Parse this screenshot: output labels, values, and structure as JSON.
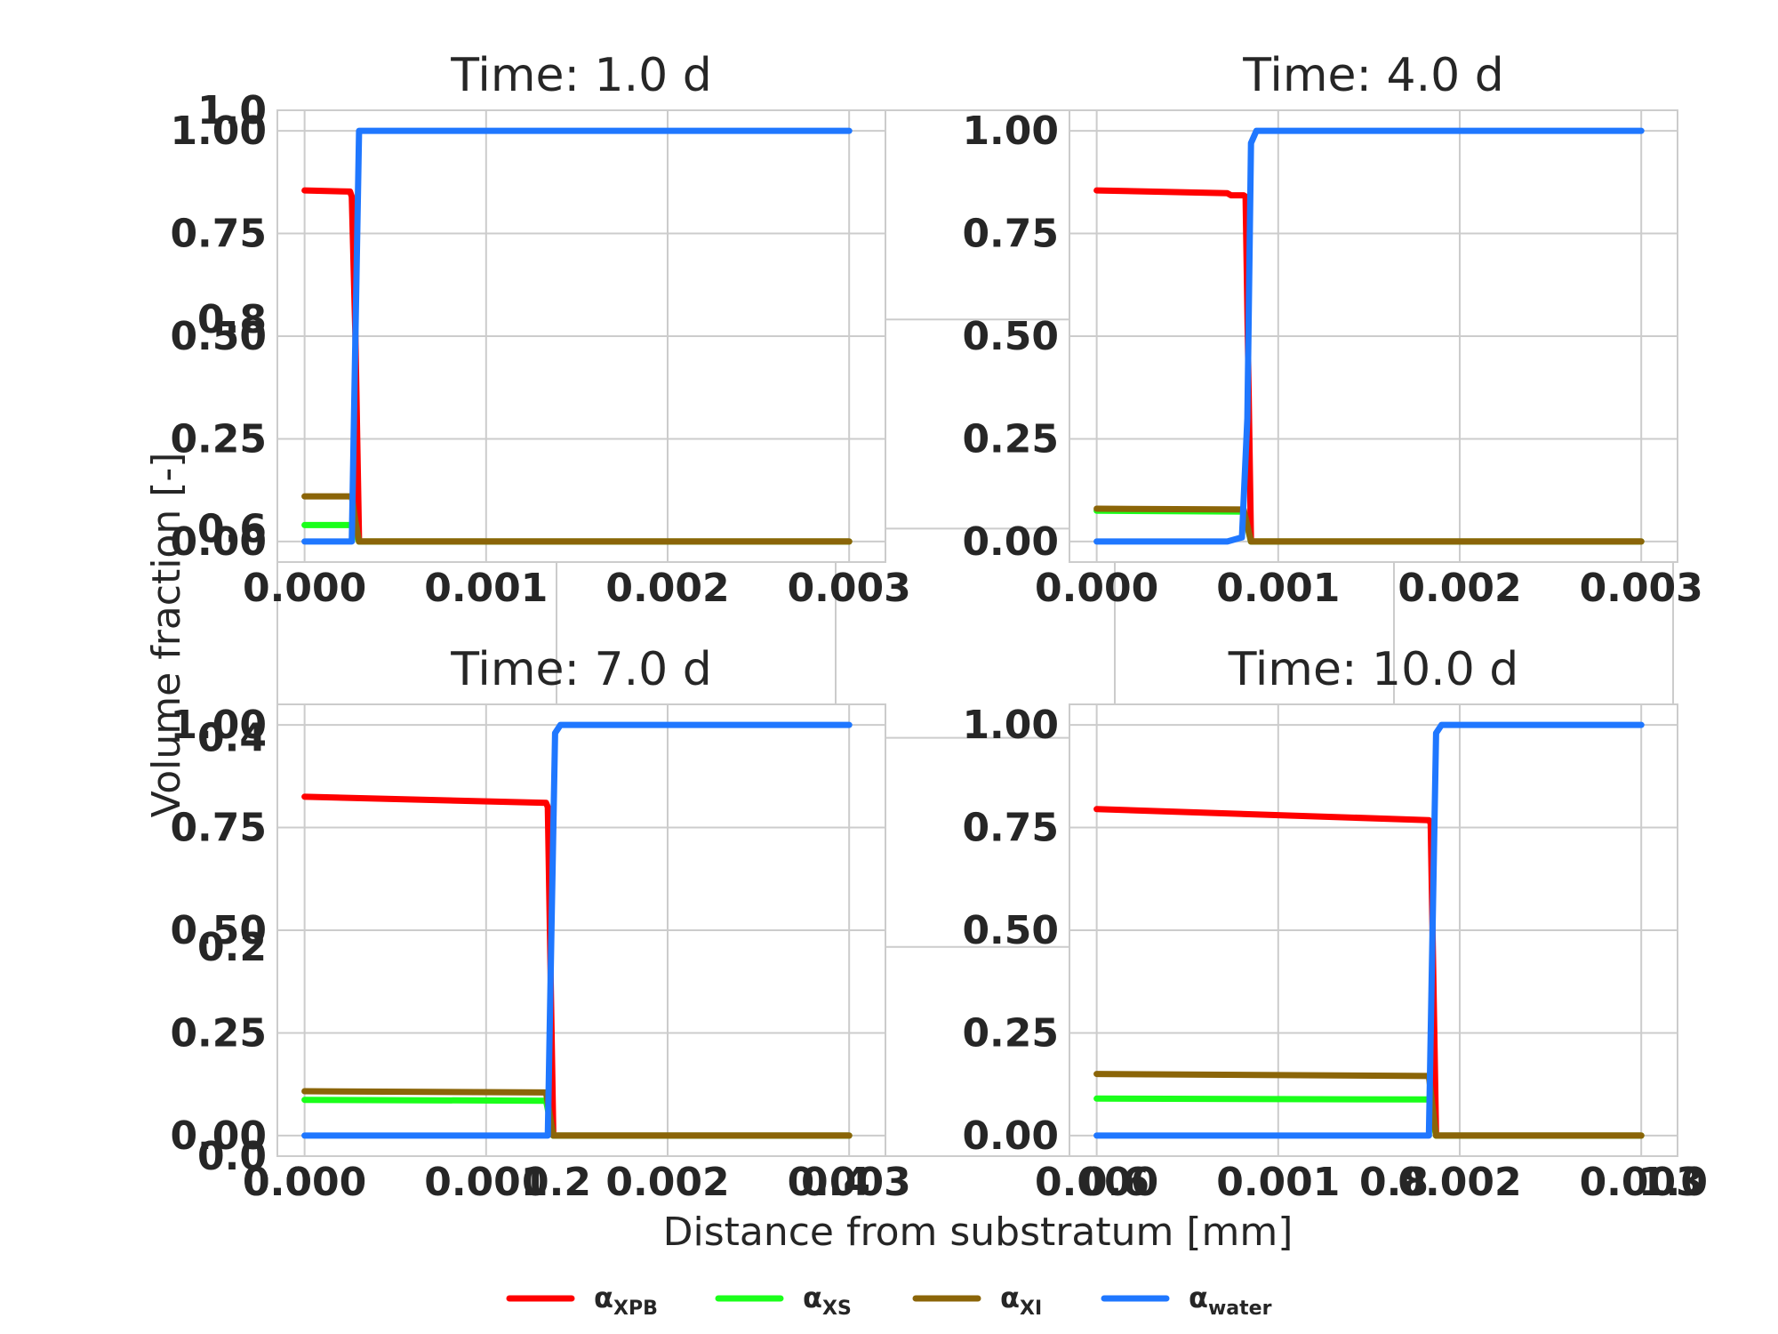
{
  "figure": {
    "xlabel": "Distance from substratum [mm]",
    "ylabel": "Volume fraction [-]",
    "outer_xticks": [
      "0.0",
      "0.2",
      "0.4",
      "0.6",
      "0.8",
      "1.0"
    ],
    "outer_yticks": [
      "0.0",
      "0.2",
      "0.4",
      "0.6",
      "0.8",
      "1.0"
    ]
  },
  "legend": {
    "placement": "bottom-center",
    "items": [
      {
        "symbol": "α",
        "sub": "XPB",
        "color": "#ff0000"
      },
      {
        "symbol": "α",
        "sub": "XS",
        "color": "#1aff1a"
      },
      {
        "symbol": "α",
        "sub": "XI",
        "color": "#8b6508"
      },
      {
        "symbol": "α",
        "sub": "water",
        "color": "#1f77ff"
      }
    ]
  },
  "chart_data": [
    {
      "type": "line",
      "title": "Time: 1.0 d",
      "xlim": [
        -0.00015,
        0.0032
      ],
      "ylim": [
        -0.05,
        1.05
      ],
      "grid": true,
      "xticks": [
        0.0,
        0.001,
        0.002,
        0.003
      ],
      "xticklabels": [
        "0.000",
        "0.001",
        "0.002",
        "0.003"
      ],
      "yticks": [
        0.0,
        0.25,
        0.5,
        0.75,
        1.0
      ],
      "yticklabels": [
        "0.00",
        "0.25",
        "0.50",
        "0.75",
        "1.00"
      ],
      "series": [
        {
          "color": "#ff0000",
          "x": [
            0.0,
            0.00025,
            0.00026,
            0.00028,
            0.0003,
            0.003
          ],
          "y": [
            0.855,
            0.852,
            0.84,
            0.5,
            0.0,
            0.0
          ]
        },
        {
          "color": "#1aff1a",
          "x": [
            0.0,
            0.00026,
            0.00028,
            0.0003,
            0.003
          ],
          "y": [
            0.04,
            0.04,
            0.02,
            0.0,
            0.0
          ]
        },
        {
          "color": "#8b6508",
          "x": [
            0.0,
            0.00026,
            0.00028,
            0.0003,
            0.003
          ],
          "y": [
            0.11,
            0.11,
            0.05,
            0.0,
            0.0
          ]
        },
        {
          "color": "#1f77ff",
          "x": [
            0.0,
            0.00026,
            0.00028,
            0.0003,
            0.003
          ],
          "y": [
            0.0,
            0.0,
            0.5,
            1.0,
            1.0
          ]
        }
      ]
    },
    {
      "type": "line",
      "title": "Time: 4.0 d",
      "xlim": [
        -0.00015,
        0.0032
      ],
      "ylim": [
        -0.05,
        1.05
      ],
      "grid": true,
      "xticks": [
        0.0,
        0.001,
        0.002,
        0.003
      ],
      "xticklabels": [
        "0.000",
        "0.001",
        "0.002",
        "0.003"
      ],
      "yticks": [
        0.0,
        0.25,
        0.5,
        0.75,
        1.0
      ],
      "yticklabels": [
        "0.00",
        "0.25",
        "0.50",
        "0.75",
        "1.00"
      ],
      "series": [
        {
          "color": "#ff0000",
          "x": [
            0.0,
            0.00072,
            0.00074,
            0.00081,
            0.00082,
            0.00085,
            0.003
          ],
          "y": [
            0.855,
            0.848,
            0.843,
            0.843,
            0.84,
            0.0,
            0.0
          ]
        },
        {
          "color": "#1aff1a",
          "x": [
            0.0,
            0.00081,
            0.00085,
            0.003
          ],
          "y": [
            0.075,
            0.073,
            0.0,
            0.0
          ]
        },
        {
          "color": "#8b6508",
          "x": [
            0.0,
            0.00081,
            0.00085,
            0.003
          ],
          "y": [
            0.08,
            0.078,
            0.0,
            0.0
          ]
        },
        {
          "color": "#1f77ff",
          "x": [
            0.0,
            0.00072,
            0.0008,
            0.00083,
            0.00085,
            0.00088,
            0.003
          ],
          "y": [
            0.0,
            0.0,
            0.01,
            0.3,
            0.97,
            1.0,
            1.0
          ]
        }
      ]
    },
    {
      "type": "line",
      "title": "Time: 7.0 d",
      "xlim": [
        -0.00015,
        0.0032
      ],
      "ylim": [
        -0.05,
        1.05
      ],
      "grid": true,
      "xticks": [
        0.0,
        0.001,
        0.002,
        0.003
      ],
      "xticklabels": [
        "0.000",
        "0.001",
        "0.002",
        "0.003"
      ],
      "yticks": [
        0.0,
        0.25,
        0.5,
        0.75,
        1.0
      ],
      "yticklabels": [
        "0.00",
        "0.25",
        "0.50",
        "0.75",
        "1.00"
      ],
      "series": [
        {
          "color": "#ff0000",
          "x": [
            0.0,
            0.00133,
            0.00134,
            0.00137,
            0.003
          ],
          "y": [
            0.825,
            0.81,
            0.8,
            0.0,
            0.0
          ]
        },
        {
          "color": "#1aff1a",
          "x": [
            0.0,
            0.00133,
            0.00137,
            0.003
          ],
          "y": [
            0.087,
            0.085,
            0.0,
            0.0
          ]
        },
        {
          "color": "#8b6508",
          "x": [
            0.0,
            0.00133,
            0.00137,
            0.003
          ],
          "y": [
            0.108,
            0.105,
            0.0,
            0.0
          ]
        },
        {
          "color": "#1f77ff",
          "x": [
            0.0,
            0.00134,
            0.00136,
            0.00138,
            0.00141,
            0.003
          ],
          "y": [
            0.0,
            0.0,
            0.5,
            0.98,
            1.0,
            1.0
          ]
        }
      ]
    },
    {
      "type": "line",
      "title": "Time: 10.0 d",
      "xlim": [
        -0.00015,
        0.0032
      ],
      "ylim": [
        -0.05,
        1.05
      ],
      "grid": true,
      "xticks": [
        0.0,
        0.001,
        0.002,
        0.003
      ],
      "xticklabels": [
        "0.000",
        "0.001",
        "0.002",
        "0.003"
      ],
      "yticks": [
        0.0,
        0.25,
        0.5,
        0.75,
        1.0
      ],
      "yticklabels": [
        "0.00",
        "0.25",
        "0.50",
        "0.75",
        "1.00"
      ],
      "series": [
        {
          "color": "#ff0000",
          "x": [
            0.0,
            0.00183,
            0.00184,
            0.00187,
            0.003
          ],
          "y": [
            0.795,
            0.768,
            0.76,
            0.0,
            0.0
          ]
        },
        {
          "color": "#1aff1a",
          "x": [
            0.0,
            0.00183,
            0.00187,
            0.003
          ],
          "y": [
            0.09,
            0.088,
            0.0,
            0.0
          ]
        },
        {
          "color": "#8b6508",
          "x": [
            0.0,
            0.00183,
            0.00187,
            0.003
          ],
          "y": [
            0.15,
            0.145,
            0.0,
            0.0
          ]
        },
        {
          "color": "#1f77ff",
          "x": [
            0.0,
            0.00183,
            0.00185,
            0.00187,
            0.0019,
            0.003
          ],
          "y": [
            0.0,
            0.0,
            0.5,
            0.98,
            1.0,
            1.0
          ]
        }
      ]
    }
  ]
}
